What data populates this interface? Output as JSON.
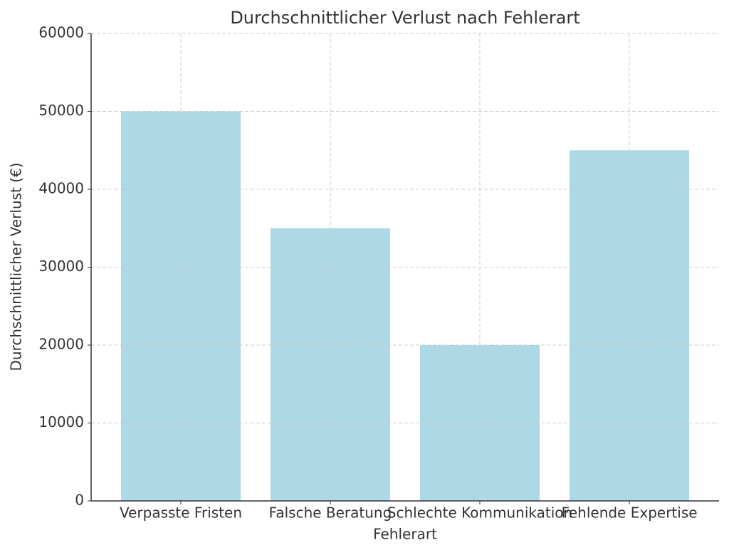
{
  "chart_data": {
    "type": "bar",
    "title": "Durchschnittlicher Verlust nach Fehlerart",
    "x_label": "Fehlerart",
    "y_label": "Durchschnittlicher Verlust (€)",
    "categories": [
      "Verpasste Fristen",
      "Falsche Beratung",
      "Schlechte Kommunikation",
      "Fehlende Expertise"
    ],
    "values": [
      50000,
      35000,
      20000,
      45000
    ],
    "color": "#add8e6",
    "ylim": [
      0,
      60000
    ],
    "yticks": [
      0,
      10000,
      20000,
      30000,
      40000,
      50000,
      60000
    ],
    "grid": true
  }
}
